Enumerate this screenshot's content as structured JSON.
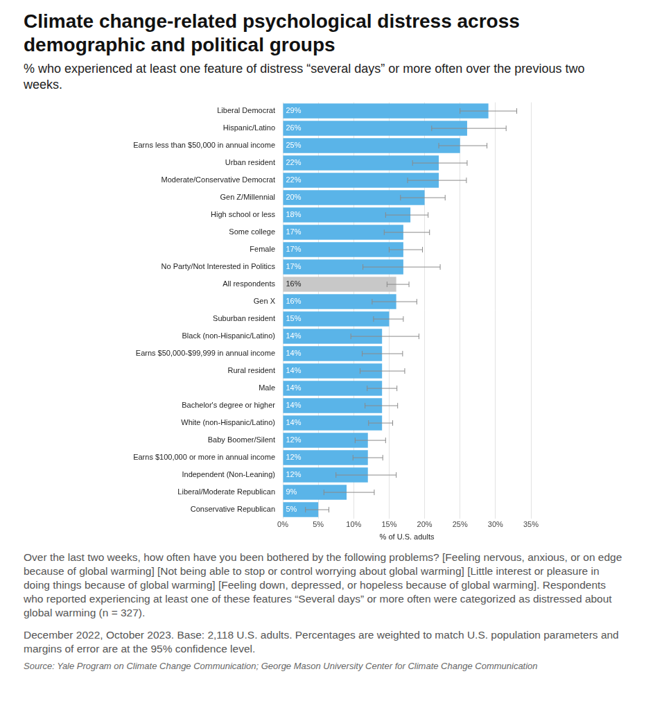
{
  "chart_data": {
    "type": "bar",
    "orientation": "horizontal",
    "title": "Climate change-related psychological distress across demographic and political groups",
    "subtitle": "% who experienced at least one feature of distress “several days” or more often over the previous two weeks.",
    "x_label": "% of U.S. adults",
    "categories": [
      "Liberal Democrat",
      "Hispanic/Latino",
      "Earns less than $50,000 in annual income",
      "Urban resident",
      "Moderate/Conservative Democrat",
      "Gen Z/Millennial",
      "High school or less",
      "Some college",
      "Female",
      "No Party/Not Interested in Politics",
      "All respondents",
      "Gen X",
      "Suburban resident",
      "Black (non-Hispanic/Latino)",
      "Earns $50,000-$99,999 in annual income",
      "Rural resident",
      "Male",
      "Bachelor's degree or higher",
      "White (non-Hispanic/Latino)",
      "Baby Boomer/Silent",
      "Earns $100,000 or more in annual income",
      "Independent (Non-Leaning)",
      "Liberal/Moderate Republican",
      "Conservative Republican"
    ],
    "values": [
      29,
      26,
      25,
      22,
      22,
      20,
      18,
      17,
      17,
      17,
      16,
      16,
      15,
      14,
      14,
      14,
      14,
      14,
      14,
      12,
      12,
      12,
      9,
      5
    ],
    "value_labels": [
      "29%",
      "26%",
      "25%",
      "22%",
      "22%",
      "20%",
      "18%",
      "17%",
      "17%",
      "17%",
      "16%",
      "16%",
      "15%",
      "14%",
      "14%",
      "14%",
      "14%",
      "14%",
      "14%",
      "12%",
      "12%",
      "12%",
      "9%",
      "5%"
    ],
    "error_low": [
      25,
      21,
      22,
      18.3,
      17.6,
      16.6,
      14.5,
      14.3,
      15,
      11.3,
      14.7,
      12.6,
      12.8,
      9.6,
      11.2,
      10.9,
      11.9,
      11.6,
      12.1,
      10.2,
      9.9,
      7.5,
      5.8,
      3.2
    ],
    "error_high": [
      33,
      31.5,
      28.8,
      26,
      25.9,
      22.9,
      20.5,
      20.7,
      19.7,
      22.2,
      17.8,
      18.9,
      17,
      19.2,
      16.9,
      17.2,
      16.1,
      16.2,
      15.5,
      14.5,
      14.1,
      16,
      12.9,
      6.5
    ],
    "colors": [
      "#5ab4e8",
      "#5ab4e8",
      "#5ab4e8",
      "#5ab4e8",
      "#5ab4e8",
      "#5ab4e8",
      "#5ab4e8",
      "#5ab4e8",
      "#5ab4e8",
      "#5ab4e8",
      "#c8c8c8",
      "#5ab4e8",
      "#5ab4e8",
      "#5ab4e8",
      "#5ab4e8",
      "#5ab4e8",
      "#5ab4e8",
      "#5ab4e8",
      "#5ab4e8",
      "#5ab4e8",
      "#5ab4e8",
      "#5ab4e8",
      "#5ab4e8",
      "#5ab4e8"
    ],
    "xlim": [
      0,
      35
    ],
    "xticks": [
      {
        "value": 0,
        "label": "0%"
      },
      {
        "value": 5,
        "label": "5%"
      },
      {
        "value": 10,
        "label": "10%"
      },
      {
        "value": 15,
        "label": "15%"
      },
      {
        "value": 20,
        "label": "20%"
      },
      {
        "value": 25,
        "label": "25%"
      },
      {
        "value": 30,
        "label": "30%"
      },
      {
        "value": 35,
        "label": "35%"
      }
    ],
    "grid": true,
    "data_labels": true,
    "note": "Over the last two weeks, how often have you been bothered by the following problems? [Feeling nervous, anxious, or on edge because of global warming] [Not being able to stop or control worrying about global warming] [Little interest or pleasure in doing things because of global warming] [Feeling down, depressed, or hopeless because of global warming]. Respondents who reported experiencing at least one of these features “Several days” or more often were categorized as distressed about global warming (n = 327).",
    "base_note": "December 2022, October 2023. Base: 2,118 U.S. adults. Percentages are weighted to match U.S. population parameters and margins of error are at the 95% confidence level.",
    "source": "Source: Yale Program on Climate Change Communication; George Mason University Center for Climate Change Communication"
  }
}
